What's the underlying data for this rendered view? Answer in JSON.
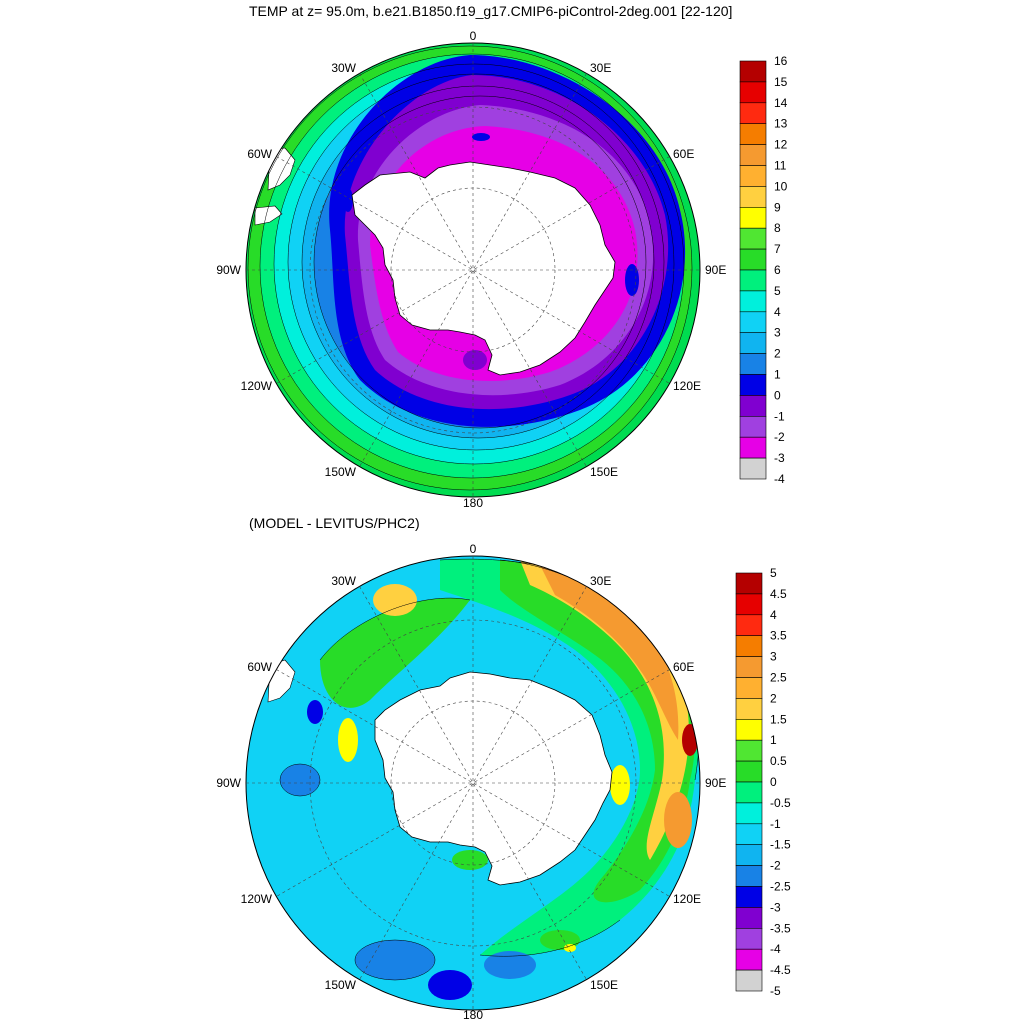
{
  "top_panel": {
    "title": "TEMP at z=  95.0m, b.e21.B1850.f19_g17.CMIP6-piControl-2deg.001 [22-120]",
    "longitude_labels": {
      "n": "0",
      "ne": "30E",
      "nw": "30W",
      "ene": "60E",
      "wnw": "60W",
      "e": "90E",
      "w": "90W",
      "ese": "120E",
      "wsw": "120W",
      "se": "150E",
      "sw": "150W",
      "s": "180"
    },
    "colorbar": {
      "labels": [
        "16",
        "15",
        "14",
        "13",
        "12",
        "11",
        "10",
        "9",
        "8",
        "7",
        "6",
        "5",
        "4",
        "3",
        "2",
        "1",
        "0",
        "-1",
        "-2",
        "-3",
        "-4"
      ],
      "colors": [
        "#b40000",
        "#e60000",
        "#ff2a10",
        "#f57d00",
        "#f59a30",
        "#ffb030",
        "#ffd040",
        "#ffff00",
        "#50e632",
        "#28dc28",
        "#00f07d",
        "#00f0dc",
        "#10d2f5",
        "#10b4f0",
        "#1882e6",
        "#0000e6",
        "#8000d0",
        "#a040e0",
        "#e600e6",
        "#d2d2d2",
        "#707070"
      ]
    }
  },
  "bottom_panel": {
    "title": "(MODEL - LEVITUS/PHC2)",
    "longitude_labels": {
      "n": "0",
      "ne": "30E",
      "nw": "30W",
      "ene": "60E",
      "wnw": "60W",
      "e": "90E",
      "w": "90W",
      "ese": "120E",
      "wsw": "120W",
      "se": "150E",
      "sw": "150W",
      "s": "180"
    },
    "colorbar": {
      "labels": [
        "5",
        "4.5",
        "4",
        "3.5",
        "3",
        "2.5",
        "2",
        "1.5",
        "1",
        "0.5",
        "0",
        "-0.5",
        "-1",
        "-1.5",
        "-2",
        "-2.5",
        "-3",
        "-3.5",
        "-4",
        "-4.5",
        "-5"
      ],
      "colors": [
        "#b40000",
        "#e60000",
        "#ff2a10",
        "#f57d00",
        "#f59a30",
        "#ffb030",
        "#ffd040",
        "#ffff00",
        "#50e632",
        "#28dc28",
        "#00f07d",
        "#00f0dc",
        "#10d2f5",
        "#10b4f0",
        "#1882e6",
        "#0000e6",
        "#8000d0",
        "#a040e0",
        "#e600e6",
        "#d2d2d2",
        "#707070"
      ]
    }
  }
}
